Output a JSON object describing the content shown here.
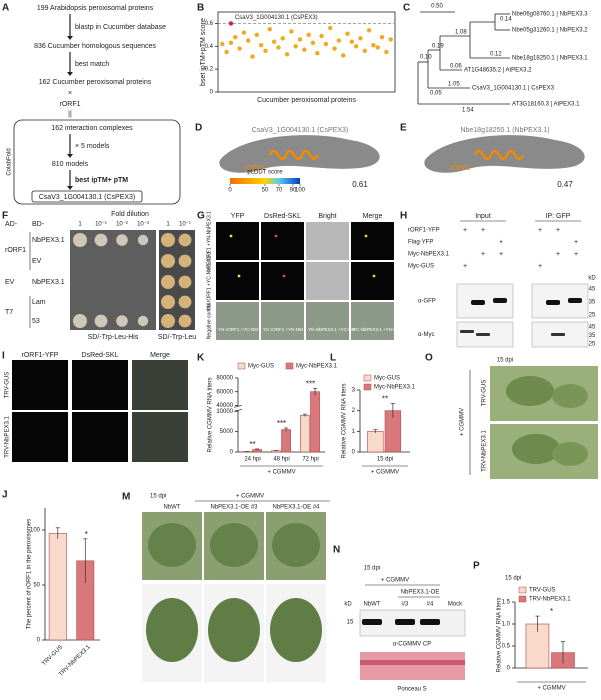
{
  "panel_labels": [
    "A",
    "B",
    "C",
    "D",
    "E",
    "F",
    "G",
    "H",
    "I",
    "J",
    "K",
    "L",
    "M",
    "N",
    "O",
    "P"
  ],
  "flowchart": {
    "steps": [
      "199 Arabidopsis peroxisomal proteins",
      "836 Cucumber homologous sequences",
      "162 Cucumber peroxisomal proteins",
      "rORF1",
      "162 interaction complexes",
      "810 models",
      "CsaV3_1G004130.1 (CsPEX3)"
    ],
    "cross": "×",
    "equals": "||",
    "arrows": [
      "blastp in Cucumber database",
      "best match",
      "× 5 models",
      "best ipTM+ pTM"
    ],
    "tool": "ColabFold"
  },
  "chart_data": [
    {
      "type": "scatter",
      "ylabel": "bset ipTM+pTM score",
      "xlabel": "Cucumber peroxisomal proteins",
      "annotation": "CsaV3_1G004130.1 (CsPEX3)",
      "hline": 0.6,
      "xlim": [
        0,
        41
      ],
      "ylim": [
        0,
        0.7
      ],
      "yticks": [
        0,
        0.2,
        0.4,
        0.6
      ],
      "series": [
        {
          "color": "#f0a81e",
          "x": [
            1,
            2,
            3,
            4,
            5,
            6,
            7,
            8,
            9,
            10,
            11,
            12,
            13,
            14,
            15,
            16,
            17,
            18,
            19,
            20,
            21,
            22,
            23,
            24,
            25,
            26,
            27,
            28,
            29,
            30,
            31,
            32,
            33,
            34,
            35,
            36,
            37,
            38,
            39,
            40
          ],
          "values": [
            0.42,
            0.35,
            0.43,
            0.48,
            0.38,
            0.52,
            0.45,
            0.31,
            0.5,
            0.41,
            0.36,
            0.55,
            0.44,
            0.39,
            0.47,
            0.33,
            0.53,
            0.4,
            0.46,
            0.37,
            0.5,
            0.43,
            0.34,
            0.49,
            0.42,
            0.56,
            0.38,
            0.45,
            0.32,
            0.51,
            0.44,
            0.4,
            0.47,
            0.36,
            0.54,
            0.41,
            0.39,
            0.48,
            0.35,
            0.46
          ]
        },
        {
          "color": "#d0204a",
          "x": [
            3
          ],
          "values": [
            0.6
          ]
        }
      ]
    },
    {
      "type": "bar",
      "ylabel": "The percent of rORF1 in the peroxisomes",
      "categories": [
        "TRV-GUS",
        "TRV-NbPEX3.1"
      ],
      "values": [
        97,
        72
      ],
      "errors": [
        5,
        20
      ],
      "colors": [
        "#f9d9c9",
        "#d9787a"
      ],
      "annotations": [
        null,
        "*"
      ],
      "ylim": [
        0,
        120
      ],
      "yticks": [
        0,
        50,
        100
      ]
    },
    {
      "type": "bar",
      "ylabel": "Relative CGMMV RNA titers",
      "xlabel": "+ CGMMV",
      "categories": [
        "24 hpi",
        "48 hpi",
        "72 hpi"
      ],
      "series": [
        {
          "name": "Myc-GUS",
          "color": "#f9d9c9",
          "values": [
            100,
            300,
            9000
          ],
          "errors": [
            30,
            60,
            300
          ]
        },
        {
          "name": "Myc-NbPEX3.1",
          "color": "#d9787a",
          "values": [
            600,
            5500,
            60000
          ],
          "errors": [
            150,
            400,
            5000
          ]
        }
      ],
      "annotations": [
        "**",
        "***",
        "***"
      ],
      "legend": "top",
      "ylim": [
        0,
        80000
      ],
      "ybreak": [
        10000,
        40000
      ],
      "yticks": [
        0,
        5000,
        10000,
        40000,
        60000,
        80000
      ]
    },
    {
      "type": "bar",
      "ylabel": "Relative CGMMV RNA titers",
      "xlabel": "+ CGMMV",
      "categories": [
        "15 dpi"
      ],
      "series": [
        {
          "name": "Myc-GUS",
          "color": "#f9d9c9",
          "values": [
            1.0
          ],
          "errors": [
            0.08
          ]
        },
        {
          "name": "Myc-NbPEX3.1",
          "color": "#d9787a",
          "values": [
            2.0
          ],
          "errors": [
            0.35
          ]
        }
      ],
      "annotations": [
        "**"
      ],
      "legend": "top-left",
      "ylim": [
        0,
        3
      ],
      "yticks": [
        0,
        1,
        2,
        3
      ]
    },
    {
      "type": "bar",
      "title": "15 dpi",
      "ylabel": "Relative CGMMV RNA titers",
      "xlabel": "+ CGMMV",
      "categories": [
        null
      ],
      "series": [
        {
          "name": "TRV-GUS",
          "color": "#f9d9c9",
          "values": [
            1.0
          ],
          "errors": [
            0.18
          ]
        },
        {
          "name": "TRV-NbPEX3.1",
          "color": "#d9787a",
          "values": [
            0.35
          ],
          "errors": [
            0.25
          ]
        }
      ],
      "annotations": [
        "*"
      ],
      "legend": "top-left",
      "ylim": [
        0,
        1.5
      ],
      "yticks": [
        0,
        0.5,
        {
          "value": 1.0,
          "label": "1.0"
        },
        1.5
      ]
    }
  ],
  "tree": {
    "scale": "0.50",
    "leaves": [
      "Nbe06g08760.1 | NbPEX3.3",
      "Nbe05g31260.1 | NbPEX3.2",
      "Nbe18g18250.1 | NbPEX3.1",
      "AT1G48635.2 | AtPEX3.2",
      "CsaV3_1G004130.1 | CsPEX3",
      "AT3G18160.3 | AtPEX3.1"
    ],
    "branches": [
      "0.14",
      "1.08",
      "0.12",
      "0.06",
      "0.19",
      "0.10",
      "1.05",
      "0.05",
      "1.54"
    ]
  },
  "structures": [
    {
      "title": "CsaV3_1G004130.1 (CsPEX3)",
      "ligand": "rORF1",
      "score": 0.61
    },
    {
      "title": "Nbe18g18250.1 (NbPEX3.1)",
      "ligand": "rORF1",
      "score": 0.47
    }
  ],
  "plddt": {
    "title": "pLDDT score",
    "ticks": [
      0,
      50,
      70,
      90,
      100
    ]
  },
  "y2h": {
    "ad": "AD-",
    "bd": "BD-",
    "dilution_title": "Fold dilution",
    "dilutions": [
      "1",
      "10⁻¹",
      "10⁻²",
      "10⁻³",
      "1",
      "10⁻¹"
    ],
    "ad_rows": [
      "rORF1",
      "EV",
      "T7"
    ],
    "bd_rows": [
      "NbPEX3.1",
      "EV",
      "NbPEX3.1",
      "Lam",
      "53"
    ],
    "media": [
      "SD/-Trp-Leu-His",
      "SD/-Trp-Leu"
    ]
  },
  "bifc": {
    "columns": [
      "YFP",
      "DsRed-SKL",
      "Bright",
      "Merge"
    ],
    "rows": [
      "YC-rORF1 +YN-NbPEX3.1",
      "YN-rORF1 +YC-NbPEX3.1",
      "Negative control"
    ],
    "negative_labels": [
      "YN-rORF1 +YC-NM",
      "YC-rORF1 +YN-NM",
      "YN-NbPEX3.1 +YC-NM",
      "YC-NbPEX3.1 +YN-NM"
    ]
  },
  "coip": {
    "groups": [
      "Input",
      "IP: GFP"
    ],
    "rows": [
      "rORF1-YFP",
      "Flag-YFP",
      "Myc-NbPEX3.1",
      "Myc-GUS"
    ],
    "sign": "+",
    "lanes": [
      [
        true,
        true,
        false,
        true,
        true,
        false
      ],
      [
        false,
        false,
        true,
        false,
        false,
        true
      ],
      [
        false,
        true,
        true,
        false,
        true,
        true
      ],
      [
        true,
        false,
        false,
        true,
        false,
        false
      ]
    ],
    "unit": "kD",
    "blots": [
      {
        "antibody": "α-GFP",
        "markers": [
          45,
          35,
          25
        ]
      },
      {
        "antibody": "α-Myc",
        "markers": [
          45,
          35,
          25
        ]
      }
    ]
  },
  "localization": {
    "columns": [
      "rORF1-YFP",
      "DsRed-SKL",
      "Merge"
    ],
    "rows": [
      "TRV-GUS",
      "TRV-NbPEX3.1"
    ]
  },
  "plants_m": {
    "time": "15 dpi",
    "treatment": "+ CGMMV",
    "lines": [
      "NbWT",
      "NbPEX3.1-OE #3",
      "NbPEX3.1-OE #4"
    ]
  },
  "western": {
    "time": "15 dpi",
    "treatment": "+ CGMMV",
    "group": "NbPEX3.1-OE",
    "lanes": [
      "NbWT",
      "#3",
      "#4",
      "Mock"
    ],
    "unit": "kD",
    "marker": 15,
    "antibody": "α-CGMMV CP",
    "loading": "Ponceau S"
  },
  "plants_o": {
    "time": "15 dpi",
    "treatment": "+ CGMMV",
    "rows": [
      "TRV-GUS",
      "TRV-NbPEX3.1"
    ]
  }
}
